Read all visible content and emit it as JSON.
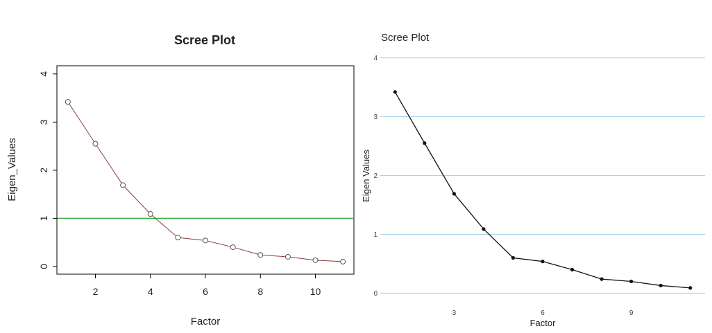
{
  "chart_data": [
    {
      "type": "line",
      "title": "Scree Plot",
      "xlabel": "Factor",
      "ylabel": "Eigen_Values",
      "x": [
        1,
        2,
        3,
        4,
        5,
        6,
        7,
        8,
        9,
        10,
        11
      ],
      "series": [
        {
          "values": [
            3.42,
            2.55,
            1.69,
            1.09,
            0.6,
            0.54,
            0.4,
            0.24,
            0.2,
            0.13,
            0.1
          ]
        }
      ],
      "xticks": [
        2,
        4,
        6,
        8,
        10
      ],
      "yticks": [
        0,
        1,
        2,
        3,
        4
      ],
      "xlim": [
        0.6,
        11.4
      ],
      "ylim": [
        -0.16,
        4.17
      ],
      "reference_line": {
        "y": 1,
        "color": "#3cb043"
      },
      "line_color": "#8b3a3a",
      "marker": "open-circle",
      "grid": false
    },
    {
      "type": "line",
      "title": "Scree Plot",
      "xlabel": "Factor",
      "ylabel": "Eigen Values",
      "x": [
        1,
        2,
        3,
        4,
        5,
        6,
        7,
        8,
        9,
        10,
        11
      ],
      "series": [
        {
          "values": [
            3.42,
            2.55,
            1.69,
            1.09,
            0.6,
            0.54,
            0.4,
            0.24,
            0.2,
            0.13,
            0.09
          ]
        }
      ],
      "xticks": [
        3,
        6,
        9
      ],
      "yticks": [
        0,
        1,
        2,
        3,
        4
      ],
      "xlim": [
        0.5,
        11.5
      ],
      "ylim": [
        -0.1,
        4.1
      ],
      "line_color": "#111111",
      "marker": "filled-dot",
      "grid": "horizontal",
      "grid_color": "#a8d4e6"
    }
  ]
}
